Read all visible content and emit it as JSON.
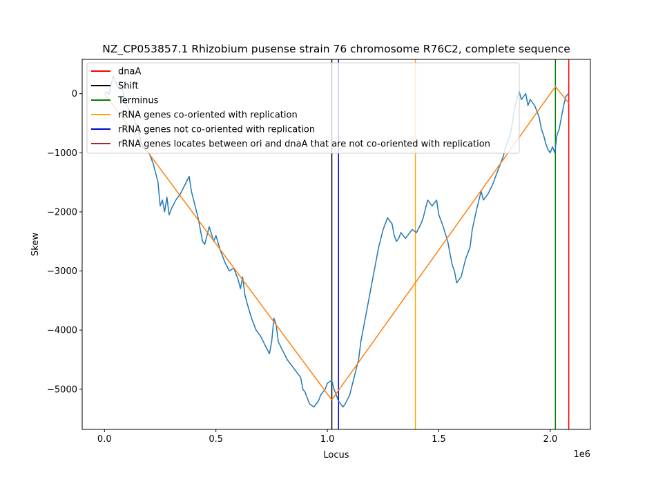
{
  "chart_data": {
    "type": "line",
    "title": "NZ_CP053857.1 Rhizobium pusense strain 76 chromosome R76C2, complete sequence",
    "xlabel": "Locus",
    "ylabel": "Skew",
    "x_offset_label": "1e6",
    "xlim": [
      -0.1,
      2.18
    ],
    "ylim": [
      -5680,
      580
    ],
    "x_ticks": [
      0.0,
      0.5,
      1.0,
      1.5,
      2.0
    ],
    "x_tick_labels": [
      "0.0",
      "0.5",
      "1.0",
      "1.5",
      "2.0"
    ],
    "y_ticks": [
      0,
      -1000,
      -2000,
      -3000,
      -4000,
      -5000
    ],
    "y_tick_labels": [
      "0",
      "−1000",
      "−2000",
      "−3000",
      "−4000",
      "−5000"
    ],
    "grid": false,
    "legend_position": "top-left",
    "legend": [
      {
        "label": "dnaA",
        "color": "#ff0000"
      },
      {
        "label": "Shift",
        "color": "#000000"
      },
      {
        "label": "Terminus",
        "color": "#008000"
      },
      {
        "label": "rRNA genes co-oriented with replication",
        "color": "#ffa500"
      },
      {
        "label": "rRNA genes not co-oriented with replication",
        "color": "#0000cd"
      },
      {
        "label": "rRNA genes locates between ori and dnaA that are not co-oriented with replication",
        "color": "#a52a2a"
      }
    ],
    "vertical_lines": [
      {
        "x": 2.083,
        "color": "#ff0000"
      },
      {
        "x": 1.02,
        "color": "#000000"
      },
      {
        "x": 2.023,
        "color": "#008000"
      },
      {
        "x": 1.395,
        "color": "#ffa500"
      },
      {
        "x": 1.05,
        "color": "#0000cd"
      }
    ],
    "series": [
      {
        "color": "#1f77b4",
        "x": [
          0.0,
          0.01,
          0.02,
          0.03,
          0.04,
          0.05,
          0.06,
          0.08,
          0.1,
          0.13,
          0.15,
          0.17,
          0.2,
          0.22,
          0.24,
          0.25,
          0.26,
          0.27,
          0.28,
          0.29,
          0.3,
          0.32,
          0.34,
          0.36,
          0.38,
          0.39,
          0.4,
          0.42,
          0.44,
          0.45,
          0.47,
          0.49,
          0.5,
          0.52,
          0.54,
          0.56,
          0.58,
          0.6,
          0.61,
          0.62,
          0.63,
          0.64,
          0.66,
          0.68,
          0.7,
          0.72,
          0.74,
          0.75,
          0.76,
          0.77,
          0.78,
          0.8,
          0.82,
          0.84,
          0.86,
          0.88,
          0.89,
          0.9,
          0.92,
          0.94,
          0.96,
          0.97,
          0.99,
          1.0,
          1.02,
          1.03,
          1.05,
          1.07,
          1.08,
          1.1,
          1.12,
          1.14,
          1.15,
          1.17,
          1.19,
          1.21,
          1.23,
          1.25,
          1.27,
          1.29,
          1.3,
          1.31,
          1.32,
          1.33,
          1.35,
          1.36,
          1.38,
          1.4,
          1.42,
          1.43,
          1.44,
          1.45,
          1.47,
          1.49,
          1.5,
          1.52,
          1.54,
          1.55,
          1.56,
          1.57,
          1.58,
          1.6,
          1.62,
          1.64,
          1.65,
          1.67,
          1.69,
          1.7,
          1.72,
          1.74,
          1.75,
          1.77,
          1.79,
          1.8,
          1.82,
          1.83,
          1.84,
          1.85,
          1.86,
          1.87,
          1.88,
          1.89,
          1.9,
          1.91,
          1.93,
          1.95,
          1.96,
          1.97,
          1.98,
          1.99,
          2.0,
          2.01,
          2.02,
          2.03,
          2.04,
          2.05,
          2.06,
          2.07,
          2.08
        ],
        "y": [
          0,
          30,
          -20,
          150,
          300,
          200,
          120,
          80,
          -200,
          -400,
          -600,
          -900,
          -1000,
          -1200,
          -1500,
          -1900,
          -1800,
          -2000,
          -1750,
          -2050,
          -1950,
          -1800,
          -1700,
          -1550,
          -1400,
          -1650,
          -1800,
          -2100,
          -2500,
          -2550,
          -2250,
          -2500,
          -2400,
          -2650,
          -2850,
          -3000,
          -2950,
          -3150,
          -3300,
          -3100,
          -3400,
          -3550,
          -3800,
          -4000,
          -4100,
          -4250,
          -4400,
          -4200,
          -3800,
          -3900,
          -4200,
          -4350,
          -4500,
          -4600,
          -4700,
          -4800,
          -5000,
          -5050,
          -5250,
          -5300,
          -5200,
          -5100,
          -5000,
          -4900,
          -4850,
          -5000,
          -5200,
          -5300,
          -5250,
          -5100,
          -4800,
          -4500,
          -4200,
          -3800,
          -3400,
          -3000,
          -2600,
          -2300,
          -2100,
          -2200,
          -2400,
          -2500,
          -2450,
          -2350,
          -2450,
          -2400,
          -2300,
          -2350,
          -2200,
          -2100,
          -1950,
          -1800,
          -1900,
          -1800,
          -2050,
          -2250,
          -2500,
          -2700,
          -2900,
          -3000,
          -3200,
          -3100,
          -2800,
          -2600,
          -2300,
          -1950,
          -1650,
          -1800,
          -1700,
          -1550,
          -1450,
          -1250,
          -1050,
          -900,
          -700,
          -500,
          -250,
          -100,
          50,
          -100,
          -50,
          0,
          -200,
          -100,
          -200,
          -400,
          -600,
          -700,
          -850,
          -950,
          -1000,
          -900,
          -1000,
          -700,
          -600,
          -400,
          -200,
          -50,
          0
        ]
      },
      {
        "color": "#ff7f0e",
        "x": [
          0.0,
          1.02,
          2.023,
          2.083
        ],
        "y": [
          0,
          -5180,
          120,
          -160
        ]
      }
    ]
  }
}
